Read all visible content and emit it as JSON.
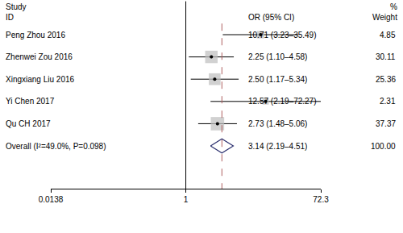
{
  "chart_data": {
    "type": "forest",
    "log": "x",
    "xlim": [
      0.0138,
      72.3
    ],
    "xticks": [
      0.0138,
      1,
      72.3
    ],
    "null_line": 1,
    "study_header": [
      "Study",
      "ID"
    ],
    "estimate_header": "OR (95% CI)",
    "weight_header": [
      "%",
      "Weight"
    ],
    "categories": [
      "Peng Zhou 2016",
      "Zhenwei Zou 2016",
      "Xingxiang Liu 2016",
      "Yi Chen 2017",
      "Qu CH 2017"
    ],
    "values": [
      10.71,
      2.25,
      2.5,
      12.57,
      2.73
    ],
    "lower": [
      3.23,
      1.1,
      1.17,
      2.19,
      1.48
    ],
    "upper": [
      35.49,
      4.58,
      5.34,
      72.27,
      5.06
    ],
    "ci_labels": [
      "10.71 (3.23–35.49)",
      "2.25 (1.10–4.58)",
      "2.50 (1.17–5.34)",
      "12.57 (2.19–72.27)",
      "2.73 (1.48–5.06)"
    ],
    "weights": [
      4.85,
      30.11,
      25.36,
      2.31,
      37.37
    ],
    "color": "#bdbdbd",
    "overall": {
      "label": "Overall (I²=49.0%, P=0.098)",
      "value": 3.14,
      "lower": 2.19,
      "upper": 4.51,
      "ci_label": "3.14 (2.19–4.51)",
      "weight": {
        "value": 100,
        "label": "100.00"
      },
      "color": "#2b2f6e"
    }
  }
}
